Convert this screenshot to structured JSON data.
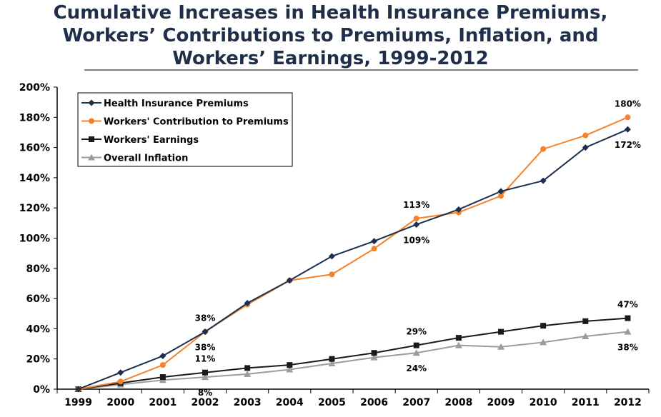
{
  "chart_data": {
    "type": "line",
    "title_lines": [
      "Cumulative Increases in Health Insurance Premiums,",
      "Workers’ Contributions to Premiums, Inflation, and",
      "Workers’ Earnings, 1999-2012"
    ],
    "x": [
      "1999",
      "2000",
      "2001",
      "2002",
      "2003",
      "2004",
      "2005",
      "2006",
      "2007",
      "2008",
      "2009",
      "2010",
      "2011",
      "2012"
    ],
    "ylim": [
      0,
      200
    ],
    "yticks": [
      0,
      20,
      40,
      60,
      80,
      100,
      120,
      140,
      160,
      180,
      200
    ],
    "ytick_labels": [
      "0%",
      "20%",
      "40%",
      "60%",
      "80%",
      "100%",
      "120%",
      "140%",
      "160%",
      "180%",
      "200%"
    ],
    "grid": false,
    "legend_position": "top-left",
    "series": [
      {
        "name": "Health Insurance Premiums",
        "color": "#1b2f4e",
        "marker": "diamond",
        "values": [
          0,
          11,
          22,
          38,
          57,
          72,
          88,
          98,
          109,
          119,
          131,
          138,
          160,
          172
        ]
      },
      {
        "name": "Workers' Contribution to Premiums",
        "color": "#f5822a",
        "marker": "circle",
        "values": [
          0,
          5,
          16,
          38,
          56,
          72,
          76,
          93,
          113,
          117,
          128,
          159,
          168,
          180
        ]
      },
      {
        "name": "Workers' Earnings",
        "color": "#1a1a1a",
        "marker": "square",
        "values": [
          0,
          4,
          8,
          11,
          14,
          16,
          20,
          24,
          29,
          34,
          38,
          42,
          45,
          47
        ]
      },
      {
        "name": "Overall Inflation",
        "color": "#9c9c9c",
        "marker": "triangle",
        "values": [
          0,
          3,
          6,
          8,
          10,
          13,
          17,
          21,
          24,
          29,
          28,
          31,
          35,
          38
        ]
      }
    ],
    "annotations": [
      {
        "text": "38%",
        "series": 0,
        "index": 3,
        "pos": "above"
      },
      {
        "text": "38%",
        "series": 1,
        "index": 3,
        "pos": "below"
      },
      {
        "text": "113%",
        "series": 1,
        "index": 8,
        "pos": "above"
      },
      {
        "text": "109%",
        "series": 0,
        "index": 8,
        "pos": "below"
      },
      {
        "text": "180%",
        "series": 1,
        "index": 13,
        "pos": "above"
      },
      {
        "text": "172%",
        "series": 0,
        "index": 13,
        "pos": "below"
      },
      {
        "text": "11%",
        "series": 2,
        "index": 3,
        "pos": "above"
      },
      {
        "text": "8%",
        "series": 3,
        "index": 3,
        "pos": "below"
      },
      {
        "text": "29%",
        "series": 2,
        "index": 8,
        "pos": "above"
      },
      {
        "text": "24%",
        "series": 3,
        "index": 8,
        "pos": "below"
      },
      {
        "text": "47%",
        "series": 2,
        "index": 13,
        "pos": "above"
      },
      {
        "text": "38%",
        "series": 3,
        "index": 13,
        "pos": "below"
      }
    ]
  }
}
